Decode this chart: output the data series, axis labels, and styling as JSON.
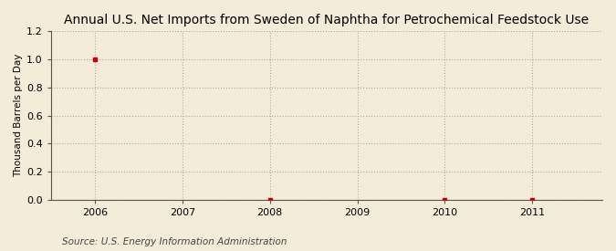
{
  "title": "Annual U.S. Net Imports from Sweden of Naphtha for Petrochemical Feedstock Use",
  "ylabel": "Thousand Barrels per Day",
  "source": "Source: U.S. Energy Information Administration",
  "background_color": "#F2ECD8",
  "plot_bg_color": "#F2ECD8",
  "data_x": [
    2006,
    2008,
    2010,
    2011
  ],
  "data_y": [
    1.0,
    0.0,
    0.0,
    0.0
  ],
  "xlim": [
    2005.5,
    2011.8
  ],
  "ylim": [
    0.0,
    1.2
  ],
  "xticks": [
    2006,
    2007,
    2008,
    2009,
    2010,
    2011
  ],
  "yticks": [
    0.0,
    0.2,
    0.4,
    0.6,
    0.8,
    1.0,
    1.2
  ],
  "marker_color": "#CC0000",
  "marker_size": 3.5,
  "grid_color": "#AAAAAA",
  "grid_style": ":",
  "title_fontsize": 10,
  "axis_label_fontsize": 7.5,
  "tick_fontsize": 8,
  "source_fontsize": 7.5
}
